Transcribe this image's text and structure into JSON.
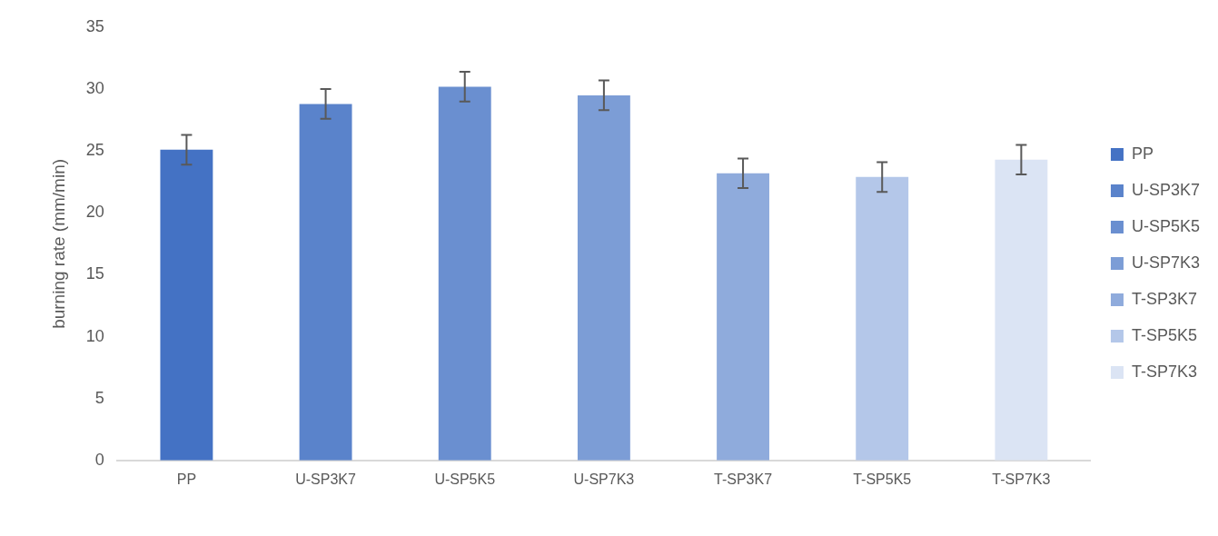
{
  "chart_data": {
    "type": "bar",
    "ylabel": "burning rate (mm/min)",
    "categories": [
      "PP",
      "U-SP3K7",
      "U-SP5K5",
      "U-SP7K3",
      "T-SP3K7",
      "T-SP5K5",
      "T-SP7K3"
    ],
    "series": [
      {
        "name": "PP",
        "color": "#4472c4",
        "values": [
          25.1,
          null,
          null,
          null,
          null,
          null,
          null
        ],
        "errors": [
          1.2,
          null,
          null,
          null,
          null,
          null,
          null
        ]
      },
      {
        "name": "U-SP3K7",
        "color": "#5a83cb",
        "values": [
          null,
          28.8,
          null,
          null,
          null,
          null,
          null
        ],
        "errors": [
          null,
          1.2,
          null,
          null,
          null,
          null,
          null
        ]
      },
      {
        "name": "U-SP5K5",
        "color": "#6a8fd0",
        "values": [
          null,
          null,
          30.2,
          null,
          null,
          null,
          null
        ],
        "errors": [
          null,
          null,
          1.2,
          null,
          null,
          null,
          null
        ]
      },
      {
        "name": "U-SP7K3",
        "color": "#7c9dd6",
        "values": [
          null,
          null,
          null,
          29.5,
          null,
          null,
          null
        ],
        "errors": [
          null,
          null,
          null,
          1.2,
          null,
          null,
          null
        ]
      },
      {
        "name": "T-SP3K7",
        "color": "#8fabdc",
        "values": [
          null,
          null,
          null,
          null,
          23.2,
          null,
          null
        ],
        "errors": [
          null,
          null,
          null,
          null,
          1.2,
          null,
          null
        ]
      },
      {
        "name": "T-SP5K5",
        "color": "#b4c7e9",
        "values": [
          null,
          null,
          null,
          null,
          null,
          22.9,
          null
        ],
        "errors": [
          null,
          null,
          null,
          null,
          null,
          1.2,
          null
        ]
      },
      {
        "name": "T-SP7K3",
        "color": "#dbe4f4",
        "values": [
          null,
          null,
          null,
          null,
          null,
          null,
          24.3
        ],
        "errors": [
          null,
          null,
          null,
          null,
          null,
          null,
          1.2
        ]
      }
    ],
    "ylim": [
      0,
      35
    ],
    "yticks": [
      0,
      5,
      10,
      15,
      20,
      25,
      30,
      35
    ],
    "grid": false,
    "legend": "right"
  }
}
